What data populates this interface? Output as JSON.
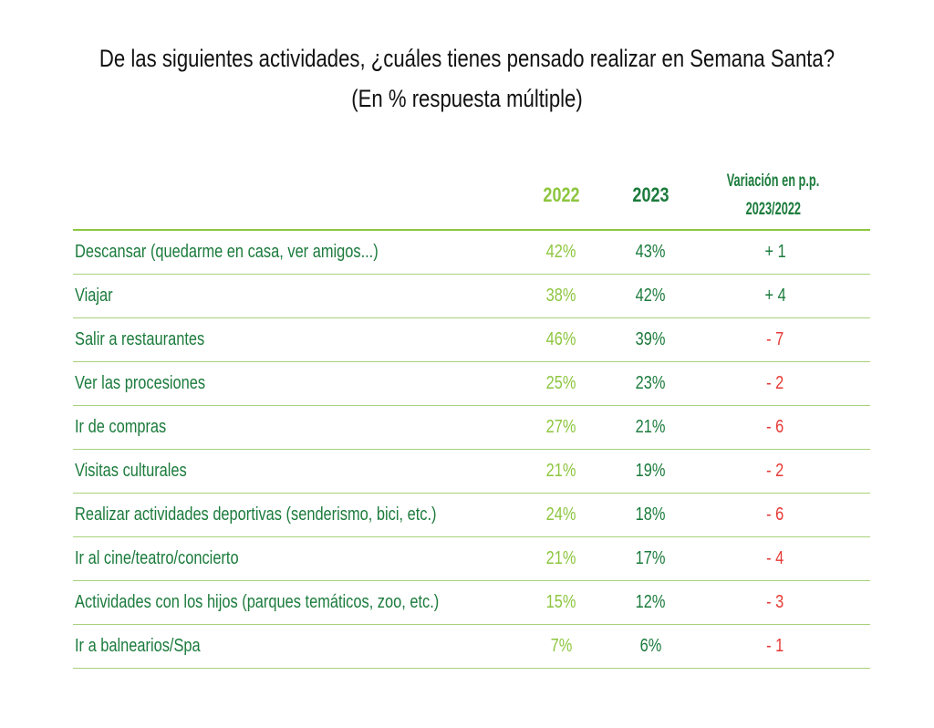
{
  "colors": {
    "col2022": "#8dc63f",
    "col2023": "#1b7b3c",
    "label": "#1b7b3c",
    "variation_positive": "#1b7b3c",
    "variation_negative": "#e53935",
    "title": "#111111"
  },
  "title": {
    "line1": "De las siguientes actividades, ¿cuáles tienes pensado realizar en Semana  Santa?",
    "line2": "(En % respuesta  múltiple)"
  },
  "chart_data": {
    "type": "table",
    "title": "De las siguientes actividades, ¿cuáles tienes pensado realizar en Semana  Santa? (En % respuesta  múltiple)",
    "columns": [
      "2022",
      "2023",
      "Variación en p.p. 2023/2022"
    ],
    "column_headers": {
      "c2022": "2022",
      "c2023": "2023",
      "var_line1": "Variación en p.p.",
      "var_line2": "2023/2022"
    },
    "rows": [
      {
        "label": "Descansar (quedarme en casa, ver amigos...)",
        "v2022": "42%",
        "v2023": "43%",
        "var": "+ 1"
      },
      {
        "label": "Viajar",
        "v2022": "38%",
        "v2023": "42%",
        "var": "+ 4"
      },
      {
        "label": "Salir a restaurantes",
        "v2022": "46%",
        "v2023": "39%",
        "var": "- 7"
      },
      {
        "label": "Ver las procesiones",
        "v2022": "25%",
        "v2023": "23%",
        "var": "- 2"
      },
      {
        "label": "Ir de compras",
        "v2022": "27%",
        "v2023": "21%",
        "var": "- 6"
      },
      {
        "label": "Visitas culturales",
        "v2022": "21%",
        "v2023": "19%",
        "var": "- 2"
      },
      {
        "label": "Realizar actividades deportivas (senderismo, bici, etc.)",
        "v2022": "24%",
        "v2023": "18%",
        "var": "- 6"
      },
      {
        "label": "Ir al cine/teatro/concierto",
        "v2022": "21%",
        "v2023": "17%",
        "var": "- 4"
      },
      {
        "label": "Actividades con los hijos (parques temáticos, zoo, etc.)",
        "v2022": "15%",
        "v2023": "12%",
        "var": "- 3"
      },
      {
        "label": "Ir a balnearios/Spa",
        "v2022": "7%",
        "v2023": "6%",
        "var": "- 1"
      }
    ]
  }
}
